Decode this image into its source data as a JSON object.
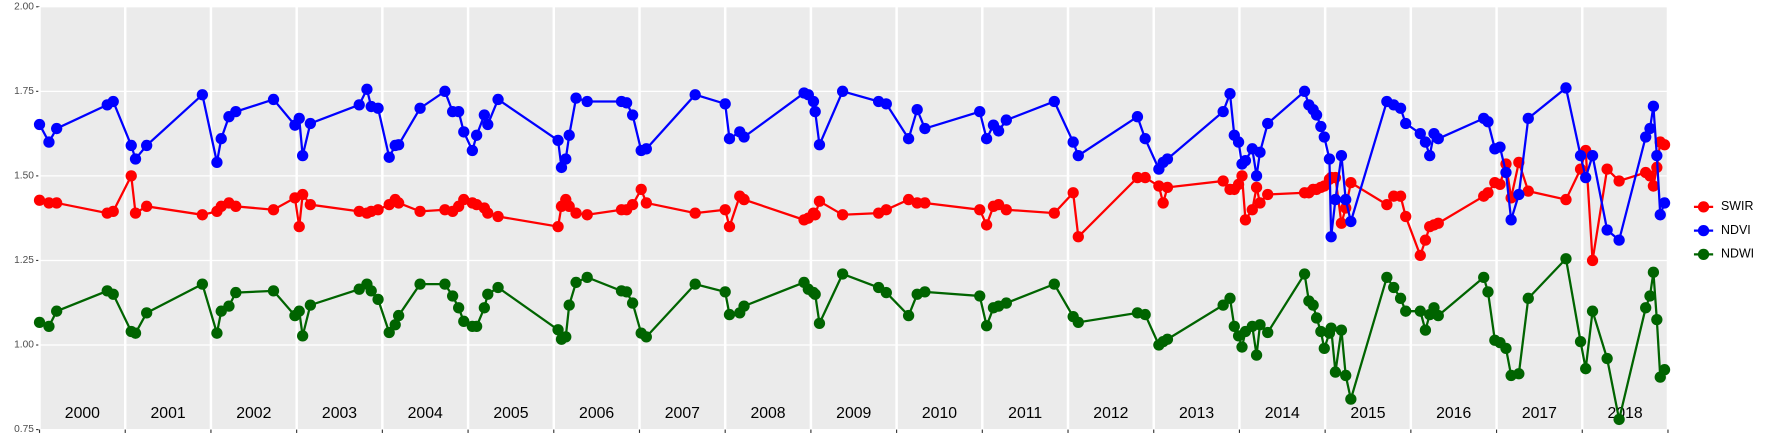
{
  "chart_data": {
    "type": "line",
    "x": [
      2000.0,
      2000.11,
      2000.2,
      2000.79,
      2000.86,
      2001.07,
      2001.12,
      2001.25,
      2001.9,
      2002.07,
      2002.12,
      2002.21,
      2002.29,
      2002.73,
      2002.98,
      2003.03,
      2003.07,
      2003.16,
      2003.73,
      2003.82,
      2003.87,
      2003.95,
      2004.08,
      2004.15,
      2004.19,
      2004.44,
      2004.73,
      2004.82,
      2004.89,
      2004.95,
      2005.05,
      2005.1,
      2005.19,
      2005.23,
      2005.35,
      2006.05,
      2006.09,
      2006.14,
      2006.18,
      2006.26,
      2006.39,
      2006.79,
      2006.85,
      2006.92,
      2007.02,
      2007.08,
      2007.65,
      2008.0,
      2008.05,
      2008.17,
      2008.22,
      2008.92,
      2008.97,
      2009.03,
      2009.05,
      2009.1,
      2009.37,
      2009.79,
      2009.88,
      2010.14,
      2010.24,
      2010.33,
      2010.97,
      2011.05,
      2011.13,
      2011.19,
      2011.28,
      2011.84,
      2012.06,
      2012.12,
      2012.81,
      2012.9,
      2013.06,
      2013.11,
      2013.16,
      2013.81,
      2013.89,
      2013.94,
      2013.99,
      2014.03,
      2014.07,
      2014.15,
      2014.2,
      2014.24,
      2014.33,
      2014.76,
      2014.81,
      2014.86,
      2014.9,
      2014.95,
      2014.99,
      2015.05,
      2015.07,
      2015.12,
      2015.19,
      2015.24,
      2015.3,
      2015.72,
      2015.8,
      2015.88,
      2015.94,
      2016.11,
      2016.17,
      2016.22,
      2016.27,
      2016.32,
      2016.85,
      2016.9,
      2016.98,
      2017.04,
      2017.11,
      2017.17,
      2017.26,
      2017.37,
      2017.81,
      2017.98,
      2018.04,
      2018.12,
      2018.29,
      2018.43,
      2018.74,
      2018.79,
      2018.83,
      2018.87,
      2018.91,
      2018.96
    ],
    "series": [
      {
        "name": "SWIR",
        "color": "#ff0000",
        "values": [
          1.428,
          1.42,
          1.42,
          1.39,
          1.395,
          1.5,
          1.39,
          1.41,
          1.385,
          1.395,
          1.41,
          1.42,
          1.41,
          1.4,
          1.435,
          1.35,
          1.445,
          1.415,
          1.395,
          1.39,
          1.395,
          1.4,
          1.415,
          1.43,
          1.42,
          1.395,
          1.4,
          1.395,
          1.41,
          1.43,
          1.42,
          1.415,
          1.405,
          1.39,
          1.38,
          1.35,
          1.41,
          1.43,
          1.41,
          1.39,
          1.385,
          1.4,
          1.4,
          1.415,
          1.46,
          1.42,
          1.39,
          1.4,
          1.35,
          1.44,
          1.43,
          1.37,
          1.375,
          1.39,
          1.385,
          1.425,
          1.385,
          1.39,
          1.4,
          1.43,
          1.42,
          1.42,
          1.4,
          1.355,
          1.41,
          1.415,
          1.4,
          1.39,
          1.45,
          1.32,
          1.495,
          1.495,
          1.47,
          1.42,
          1.466,
          1.485,
          1.46,
          1.46,
          1.475,
          1.5,
          1.37,
          1.4,
          1.466,
          1.42,
          1.445,
          1.45,
          1.45,
          1.46,
          1.46,
          1.466,
          1.47,
          1.49,
          1.495,
          1.495,
          1.36,
          1.405,
          1.48,
          1.415,
          1.44,
          1.44,
          1.38,
          1.265,
          1.31,
          1.35,
          1.355,
          1.36,
          1.44,
          1.45,
          1.48,
          1.475,
          1.535,
          1.435,
          1.54,
          1.455,
          1.43,
          1.52,
          1.575,
          1.25,
          1.52,
          1.485,
          1.51,
          1.5,
          1.47,
          1.525,
          1.6,
          1.592
        ]
      },
      {
        "name": "NDVI",
        "color": "#0000ff",
        "values": [
          1.652,
          1.6,
          1.64,
          1.71,
          1.72,
          1.59,
          1.55,
          1.59,
          1.74,
          1.54,
          1.61,
          1.675,
          1.69,
          1.726,
          1.65,
          1.67,
          1.56,
          1.655,
          1.71,
          1.756,
          1.705,
          1.7,
          1.555,
          1.59,
          1.592,
          1.7,
          1.75,
          1.69,
          1.69,
          1.63,
          1.575,
          1.62,
          1.68,
          1.652,
          1.726,
          1.605,
          1.525,
          1.55,
          1.62,
          1.73,
          1.72,
          1.72,
          1.716,
          1.68,
          1.575,
          1.58,
          1.74,
          1.713,
          1.61,
          1.63,
          1.615,
          1.745,
          1.74,
          1.72,
          1.69,
          1.592,
          1.75,
          1.72,
          1.713,
          1.61,
          1.696,
          1.64,
          1.69,
          1.61,
          1.65,
          1.633,
          1.665,
          1.72,
          1.6,
          1.56,
          1.675,
          1.61,
          1.52,
          1.54,
          1.55,
          1.69,
          1.743,
          1.62,
          1.6,
          1.535,
          1.545,
          1.58,
          1.5,
          1.57,
          1.655,
          1.75,
          1.71,
          1.696,
          1.68,
          1.646,
          1.615,
          1.55,
          1.32,
          1.43,
          1.56,
          1.43,
          1.365,
          1.72,
          1.71,
          1.7,
          1.655,
          1.625,
          1.6,
          1.56,
          1.625,
          1.61,
          1.67,
          1.66,
          1.58,
          1.585,
          1.51,
          1.37,
          1.445,
          1.67,
          1.76,
          1.56,
          1.495,
          1.56,
          1.34,
          1.31,
          1.615,
          1.64,
          1.706,
          1.56,
          1.385,
          1.42
        ]
      },
      {
        "name": "NDWI",
        "color": "#006400",
        "values": [
          1.067,
          1.055,
          1.1,
          1.16,
          1.15,
          1.04,
          1.035,
          1.095,
          1.18,
          1.035,
          1.1,
          1.115,
          1.155,
          1.16,
          1.087,
          1.1,
          1.027,
          1.118,
          1.165,
          1.18,
          1.16,
          1.135,
          1.037,
          1.06,
          1.087,
          1.18,
          1.18,
          1.145,
          1.11,
          1.07,
          1.055,
          1.055,
          1.11,
          1.15,
          1.17,
          1.045,
          1.017,
          1.024,
          1.118,
          1.185,
          1.2,
          1.16,
          1.157,
          1.124,
          1.035,
          1.024,
          1.18,
          1.157,
          1.09,
          1.095,
          1.115,
          1.185,
          1.165,
          1.155,
          1.15,
          1.064,
          1.21,
          1.17,
          1.155,
          1.087,
          1.15,
          1.157,
          1.145,
          1.057,
          1.11,
          1.115,
          1.124,
          1.18,
          1.084,
          1.067,
          1.095,
          1.09,
          1.0,
          1.01,
          1.017,
          1.118,
          1.138,
          1.055,
          1.027,
          0.994,
          1.04,
          1.055,
          0.97,
          1.06,
          1.037,
          1.21,
          1.13,
          1.118,
          1.08,
          1.04,
          0.99,
          1.035,
          1.05,
          0.92,
          1.044,
          0.91,
          0.84,
          1.2,
          1.17,
          1.138,
          1.1,
          1.1,
          1.044,
          1.09,
          1.11,
          1.087,
          1.2,
          1.157,
          1.014,
          1.007,
          0.99,
          0.91,
          0.915,
          1.138,
          1.255,
          1.01,
          0.93,
          1.1,
          0.96,
          0.78,
          1.11,
          1.145,
          1.215,
          1.075,
          0.905,
          0.927
        ]
      }
    ],
    "xlim": [
      2000,
      2019
    ],
    "xticks": [
      2000,
      2001,
      2002,
      2003,
      2004,
      2005,
      2006,
      2007,
      2008,
      2009,
      2010,
      2011,
      2012,
      2013,
      2014,
      2015,
      2016,
      2017,
      2018,
      2019
    ],
    "year_labels": [
      "2000",
      "2001",
      "2002",
      "2003",
      "2004",
      "2005",
      "2006",
      "2007",
      "2008",
      "2009",
      "2010",
      "2011",
      "2012",
      "2013",
      "2014",
      "2015",
      "2016",
      "2017",
      "2018"
    ],
    "ylim": [
      0.75,
      2.0
    ],
    "yticks": [
      0.75,
      {
        "value": 1,
        "label": "1.00"
      },
      1.25,
      {
        "value": 1.5,
        "label": "1.50"
      },
      1.75,
      {
        "value": 2,
        "label": "2.00"
      }
    ],
    "grid": true,
    "legend": "right"
  }
}
